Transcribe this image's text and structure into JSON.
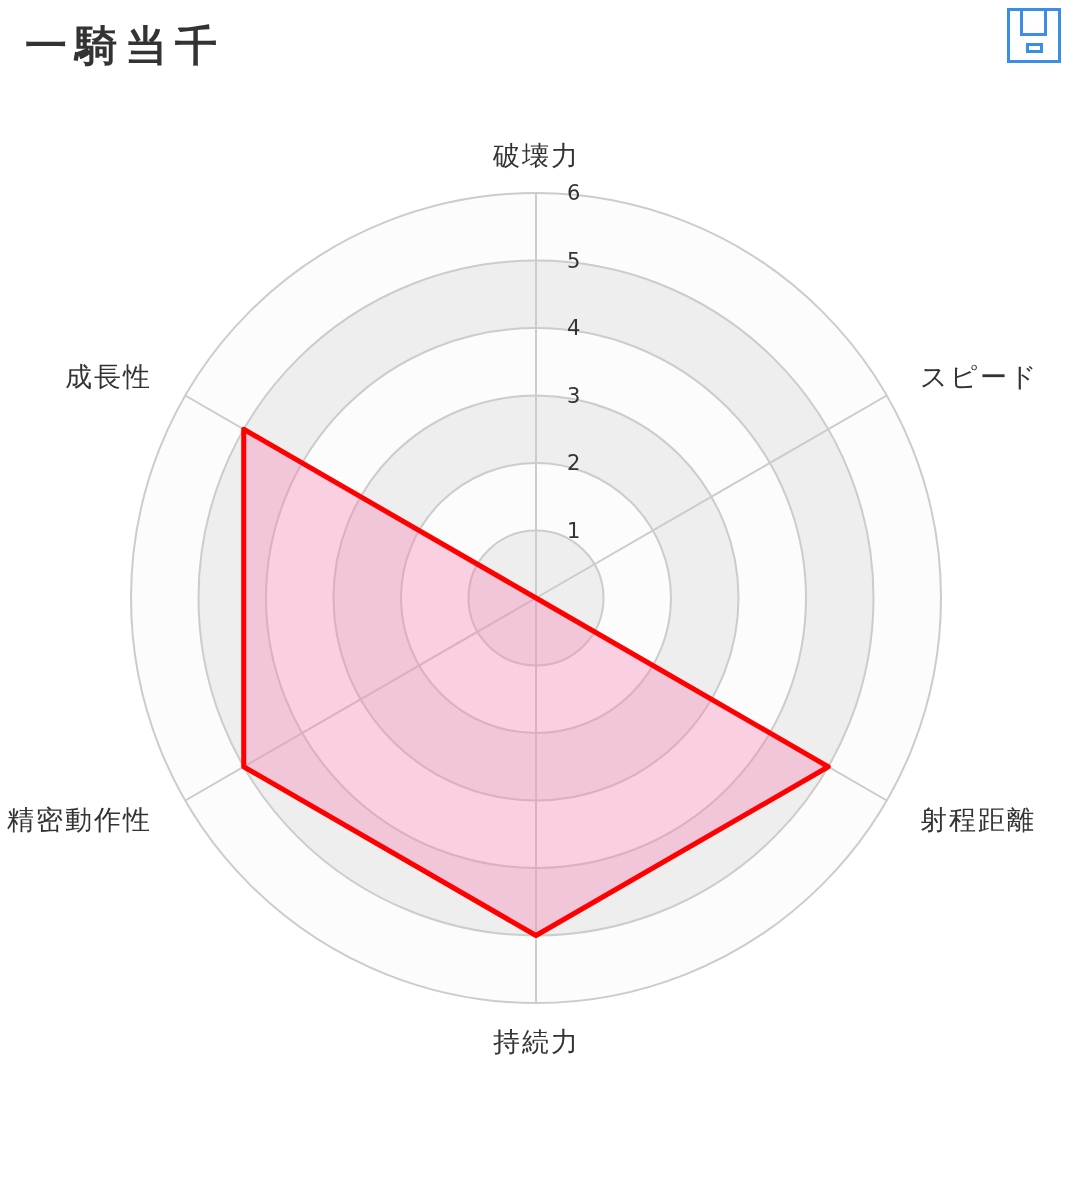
{
  "chart_data": {
    "type": "radar",
    "title": "一騎当千",
    "categories": [
      "破壊力",
      "スピード",
      "射程距離",
      "持続力",
      "精密動作性",
      "成長性"
    ],
    "series": [
      {
        "color": "#ff0000",
        "values": [
          0,
          0,
          5,
          5,
          5,
          5
        ]
      }
    ],
    "ylim": [
      0,
      6
    ],
    "yticks": [
      1,
      2,
      3,
      4,
      5,
      6
    ],
    "grid": true
  }
}
